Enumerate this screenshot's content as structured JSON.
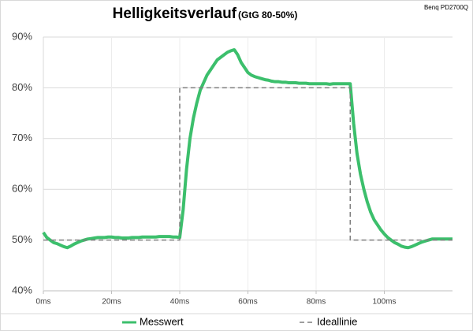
{
  "chart_data": {
    "type": "line",
    "title": "Helligkeitsverlauf",
    "subtitle": "(GtG 80-50%)",
    "annotation": "Benq PD2700Q",
    "xlim": [
      0,
      120
    ],
    "ylim": [
      40,
      90
    ],
    "xticks": [
      {
        "value": 0,
        "label": "0ms"
      },
      {
        "value": 20,
        "label": "20ms"
      },
      {
        "value": 40,
        "label": "40ms"
      },
      {
        "value": 60,
        "label": "60ms"
      },
      {
        "value": 80,
        "label": "80ms"
      },
      {
        "value": 100,
        "label": "100ms"
      }
    ],
    "yticks": [
      {
        "value": 40,
        "label": "40%"
      },
      {
        "value": 50,
        "label": "50%"
      },
      {
        "value": 60,
        "label": "60%"
      },
      {
        "value": 70,
        "label": "70%"
      },
      {
        "value": 80,
        "label": "80%"
      },
      {
        "value": 90,
        "label": "90%"
      }
    ],
    "grid": true,
    "legend": "bottom",
    "series": [
      {
        "name": "Messwert",
        "color": "#3cbf6c",
        "dashed": false,
        "x": [
          0,
          1,
          2,
          3,
          4,
          5,
          6,
          7,
          8,
          9,
          10,
          11,
          12,
          13,
          14,
          15,
          16,
          17,
          18,
          19,
          20,
          21,
          22,
          23,
          24,
          25,
          26,
          27,
          28,
          29,
          30,
          31,
          32,
          33,
          34,
          35,
          36,
          37,
          38,
          39,
          40,
          41,
          42,
          43,
          44,
          45,
          46,
          47,
          48,
          49,
          50,
          51,
          52,
          53,
          54,
          55,
          56,
          57,
          58,
          59,
          60,
          61,
          62,
          63,
          64,
          65,
          66,
          67,
          68,
          69,
          70,
          71,
          72,
          73,
          74,
          75,
          76,
          77,
          78,
          79,
          80,
          81,
          82,
          83,
          84,
          85,
          86,
          87,
          88,
          89,
          90,
          91,
          92,
          93,
          94,
          95,
          96,
          97,
          98,
          99,
          100,
          101,
          102,
          103,
          104,
          105,
          106,
          107,
          108,
          109,
          110,
          111,
          112,
          113,
          114,
          115,
          116,
          117,
          118,
          119,
          120
        ],
        "values": [
          51.5,
          50.5,
          50,
          49.5,
          49.3,
          49,
          48.7,
          48.5,
          48.8,
          49.2,
          49.5,
          49.8,
          50,
          50.2,
          50.3,
          50.4,
          50.5,
          50.5,
          50.5,
          50.6,
          50.6,
          50.5,
          50.5,
          50.4,
          50.4,
          50.4,
          50.5,
          50.5,
          50.5,
          50.6,
          50.6,
          50.6,
          50.6,
          50.6,
          50.7,
          50.7,
          50.7,
          50.7,
          50.6,
          50.6,
          50.5,
          56,
          64,
          70,
          74,
          77,
          79.5,
          81,
          82.5,
          83.5,
          84.5,
          85.5,
          86,
          86.5,
          87,
          87.3,
          87.5,
          86.5,
          85,
          84,
          83,
          82.5,
          82.2,
          82,
          81.8,
          81.6,
          81.5,
          81.3,
          81.2,
          81.2,
          81.1,
          81.1,
          81,
          81,
          81,
          80.9,
          80.9,
          80.9,
          80.8,
          80.8,
          80.8,
          80.8,
          80.8,
          80.8,
          80.7,
          80.8,
          80.8,
          80.8,
          80.8,
          80.8,
          80.8,
          73,
          67,
          63,
          60,
          57.5,
          55.5,
          54,
          53,
          52,
          51.2,
          50.5,
          50,
          49.5,
          49.2,
          48.8,
          48.6,
          48.5,
          48.7,
          49,
          49.3,
          49.6,
          49.8,
          50,
          50.2,
          50.2,
          50.2,
          50.2,
          50.2,
          50.2,
          50.2
        ]
      },
      {
        "name": "Ideallinie",
        "color": "#7f7f7f",
        "dashed": true,
        "x": [
          0,
          40,
          40,
          90,
          90,
          120
        ],
        "values": [
          50,
          50,
          80,
          80,
          50,
          50
        ]
      }
    ]
  }
}
